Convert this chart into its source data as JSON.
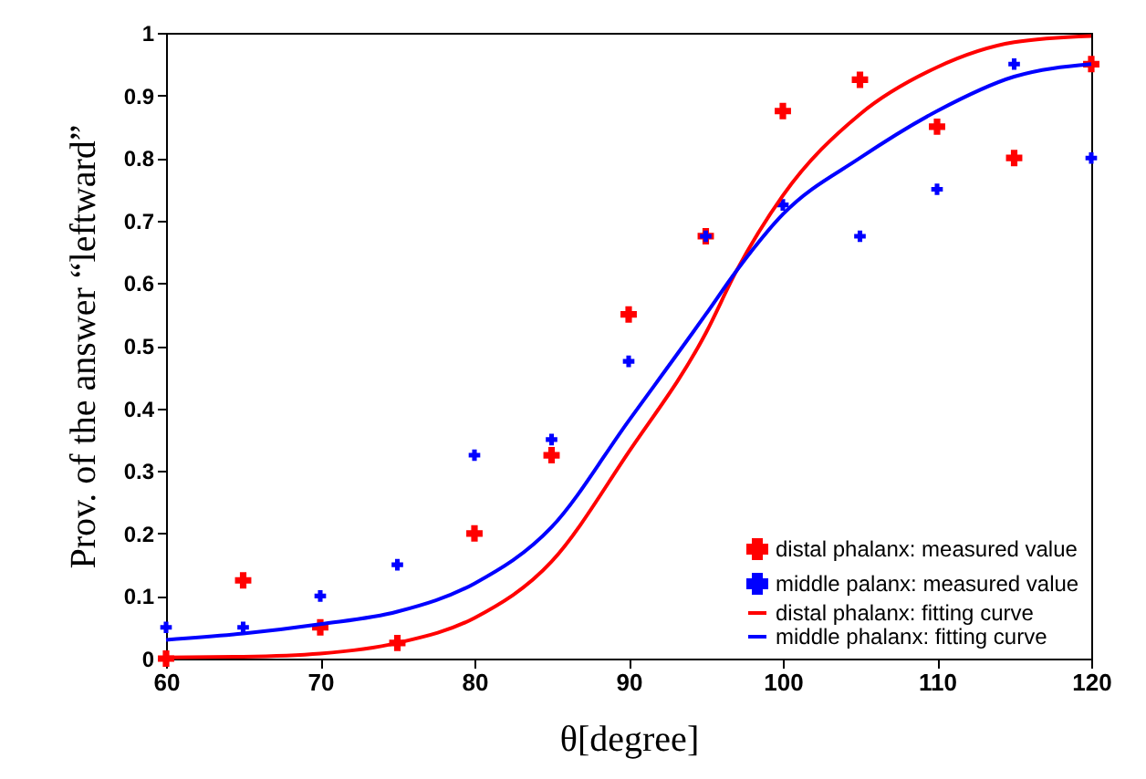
{
  "chart_data": {
    "type": "scatter",
    "xlabel": "θ[degree]",
    "ylabel": "Prov. of the answer “leftward”",
    "x": [
      60,
      65,
      70,
      75,
      80,
      85,
      90,
      95,
      100,
      105,
      110,
      115,
      120
    ],
    "series": [
      {
        "name": "distal phalanx: measured value",
        "marker": "cross",
        "color": "#ff0000",
        "values": [
          0,
          0.125,
          0.05,
          0.025,
          0.2,
          0.325,
          0.55,
          0.675,
          0.875,
          0.925,
          0.85,
          0.8,
          0.95
        ]
      },
      {
        "name": "middle palanx: measured value",
        "marker": "cross",
        "color": "#0000ff",
        "values": [
          0.05,
          0.05,
          0.1,
          0.15,
          0.325,
          0.35,
          0.475,
          0.675,
          0.725,
          0.675,
          0.75,
          0.95,
          0.8
        ]
      },
      {
        "name": "distal phalanx: fitting curve",
        "type": "line",
        "color": "#ff0000",
        "x": [
          60,
          65,
          70,
          75,
          80,
          85,
          90,
          95,
          97,
          100,
          105,
          110,
          115,
          120
        ],
        "values": [
          0.002,
          0.003,
          0.008,
          0.025,
          0.065,
          0.155,
          0.33,
          0.52,
          0.62,
          0.74,
          0.87,
          0.945,
          0.985,
          0.995
        ]
      },
      {
        "name": "middle phalanx: fitting curve",
        "type": "line",
        "color": "#0000ff",
        "x": [
          60,
          65,
          70,
          75,
          80,
          85,
          90,
          95,
          97,
          100,
          105,
          110,
          115,
          120
        ],
        "values": [
          0.03,
          0.04,
          0.055,
          0.075,
          0.12,
          0.21,
          0.38,
          0.55,
          0.62,
          0.71,
          0.8,
          0.875,
          0.93,
          0.95
        ]
      }
    ],
    "xlim": [
      60,
      120
    ],
    "xticks": [
      60,
      70,
      80,
      90,
      100,
      110,
      120
    ],
    "ylim": [
      0,
      1
    ],
    "yticks": [
      0,
      0.1,
      0.2,
      0.3,
      0.4,
      0.5,
      0.6,
      0.7,
      0.8,
      0.9,
      1
    ],
    "grid": false,
    "legend": "bottom right",
    "line_style": "solid"
  }
}
